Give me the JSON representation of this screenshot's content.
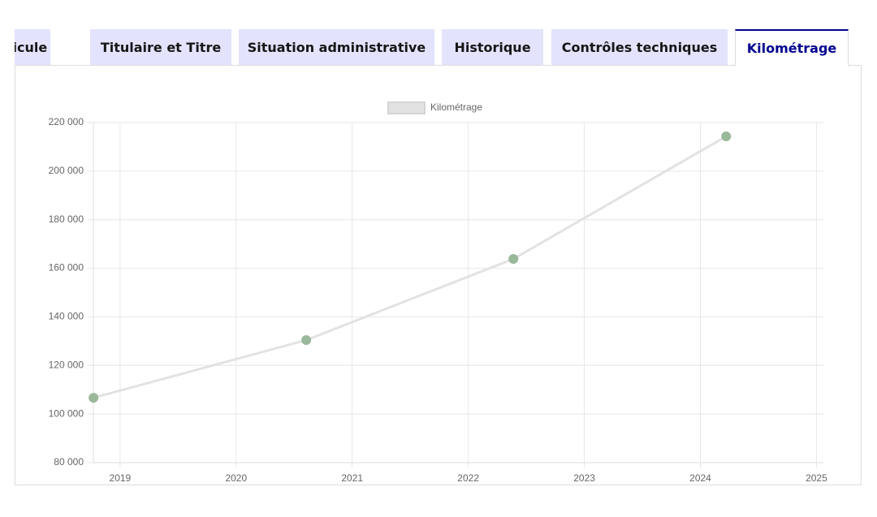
{
  "tabs": {
    "labels": [
      "Véhicule",
      "Titulaire et Titre",
      "Situation administrative",
      "Historique",
      "Contrôles techniques",
      "Kilométrage"
    ],
    "active": 5
  },
  "chart_data": {
    "type": "line",
    "x": [
      2018.771,
      2020.604,
      2022.389,
      2024.222
    ],
    "series": [
      {
        "name": "Kilométrage",
        "color": "#e2e2e2",
        "point_color": "#9ab89a",
        "values": [
          106700,
          130450,
          163860,
          214300
        ]
      }
    ],
    "xlim": [
      2018.77,
      2025.06
    ],
    "xticks": [
      2019,
      2020,
      2021,
      2022,
      2023,
      2024,
      2025
    ],
    "ylim": [
      80000,
      220000
    ],
    "yticks": [
      {
        "value": 80000,
        "label": "80 000"
      },
      {
        "value": 100000,
        "label": "100 000"
      },
      {
        "value": 120000,
        "label": "120 000"
      },
      {
        "value": 140000,
        "label": "140 000"
      },
      {
        "value": 160000,
        "label": "160 000"
      },
      {
        "value": 180000,
        "label": "180 000"
      },
      {
        "value": 200000,
        "label": "200 000"
      },
      {
        "value": 220000,
        "label": "220 000"
      }
    ],
    "grid": true,
    "legend": "top"
  }
}
